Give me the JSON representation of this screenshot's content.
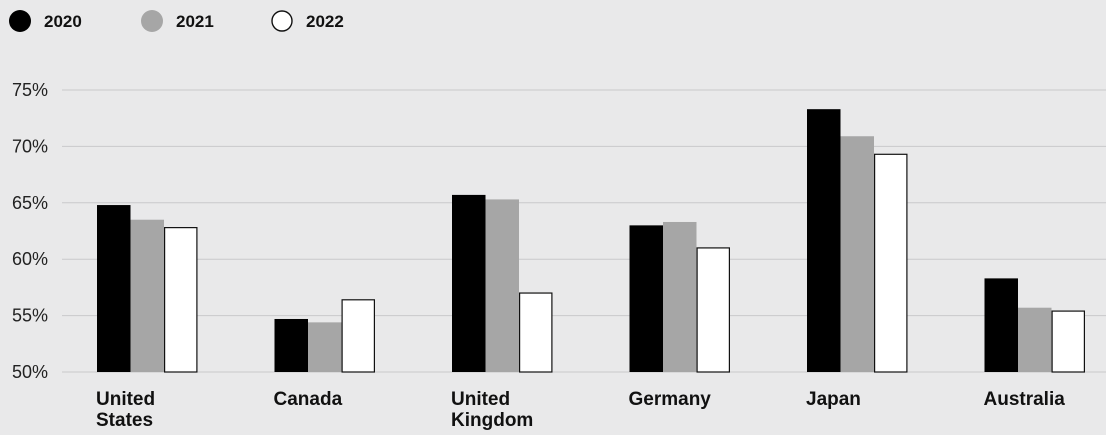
{
  "chart_data": {
    "type": "bar",
    "title": "",
    "xlabel": "",
    "ylabel": "",
    "categories": [
      [
        "United",
        "States"
      ],
      [
        "Canada"
      ],
      [
        "United",
        "Kingdom"
      ],
      [
        "Germany"
      ],
      [
        "Japan"
      ],
      [
        "Australia"
      ]
    ],
    "series": [
      {
        "name": "2020",
        "color": "#000000",
        "fill_style": "solid",
        "values": [
          64.8,
          54.7,
          65.7,
          63.0,
          73.3,
          58.3
        ]
      },
      {
        "name": "2021",
        "color": "#a6a6a6",
        "fill_style": "solid",
        "values": [
          63.5,
          54.4,
          65.3,
          63.3,
          70.9,
          55.7
        ]
      },
      {
        "name": "2022",
        "color": "#ffffff",
        "fill_style": "outline",
        "values": [
          62.8,
          56.4,
          57.0,
          61.0,
          69.3,
          55.4
        ]
      }
    ],
    "ylim": [
      50,
      75
    ],
    "y_ticks": [
      "50%",
      "55%",
      "60%",
      "65%",
      "70%",
      "75%"
    ],
    "y_tick_values": [
      50,
      55,
      60,
      65,
      70,
      75
    ],
    "grid": true,
    "legend": "top-left"
  }
}
